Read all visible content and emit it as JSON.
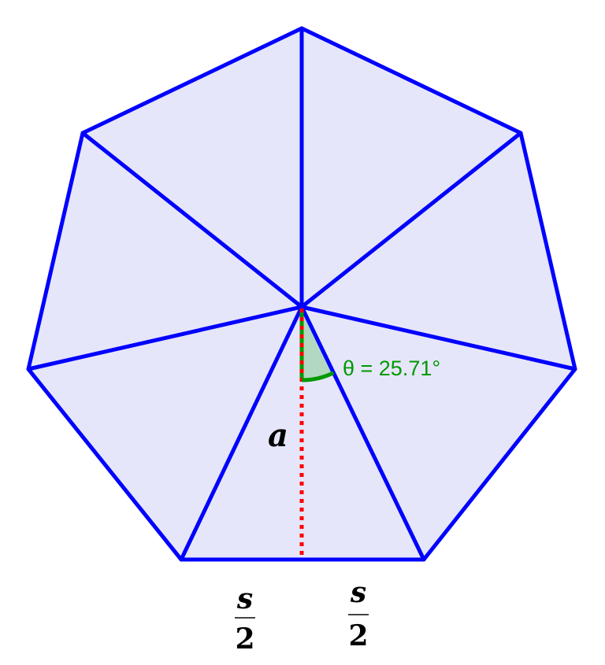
{
  "diagram": {
    "shape": "regular heptagon divided into 7 triangles from center",
    "angle_label": "θ = 25.71°",
    "apothem_label": "a",
    "half_side_left": {
      "numerator": "s",
      "denominator": "2"
    },
    "half_side_right": {
      "numerator": "s",
      "denominator": "2"
    },
    "colors": {
      "fill": "#e6e6fa",
      "edge": "#0000ff",
      "apothem": "#ff0000",
      "angle": "#009900",
      "angle_fill": "#b2d8c2",
      "text": "#000000"
    }
  }
}
